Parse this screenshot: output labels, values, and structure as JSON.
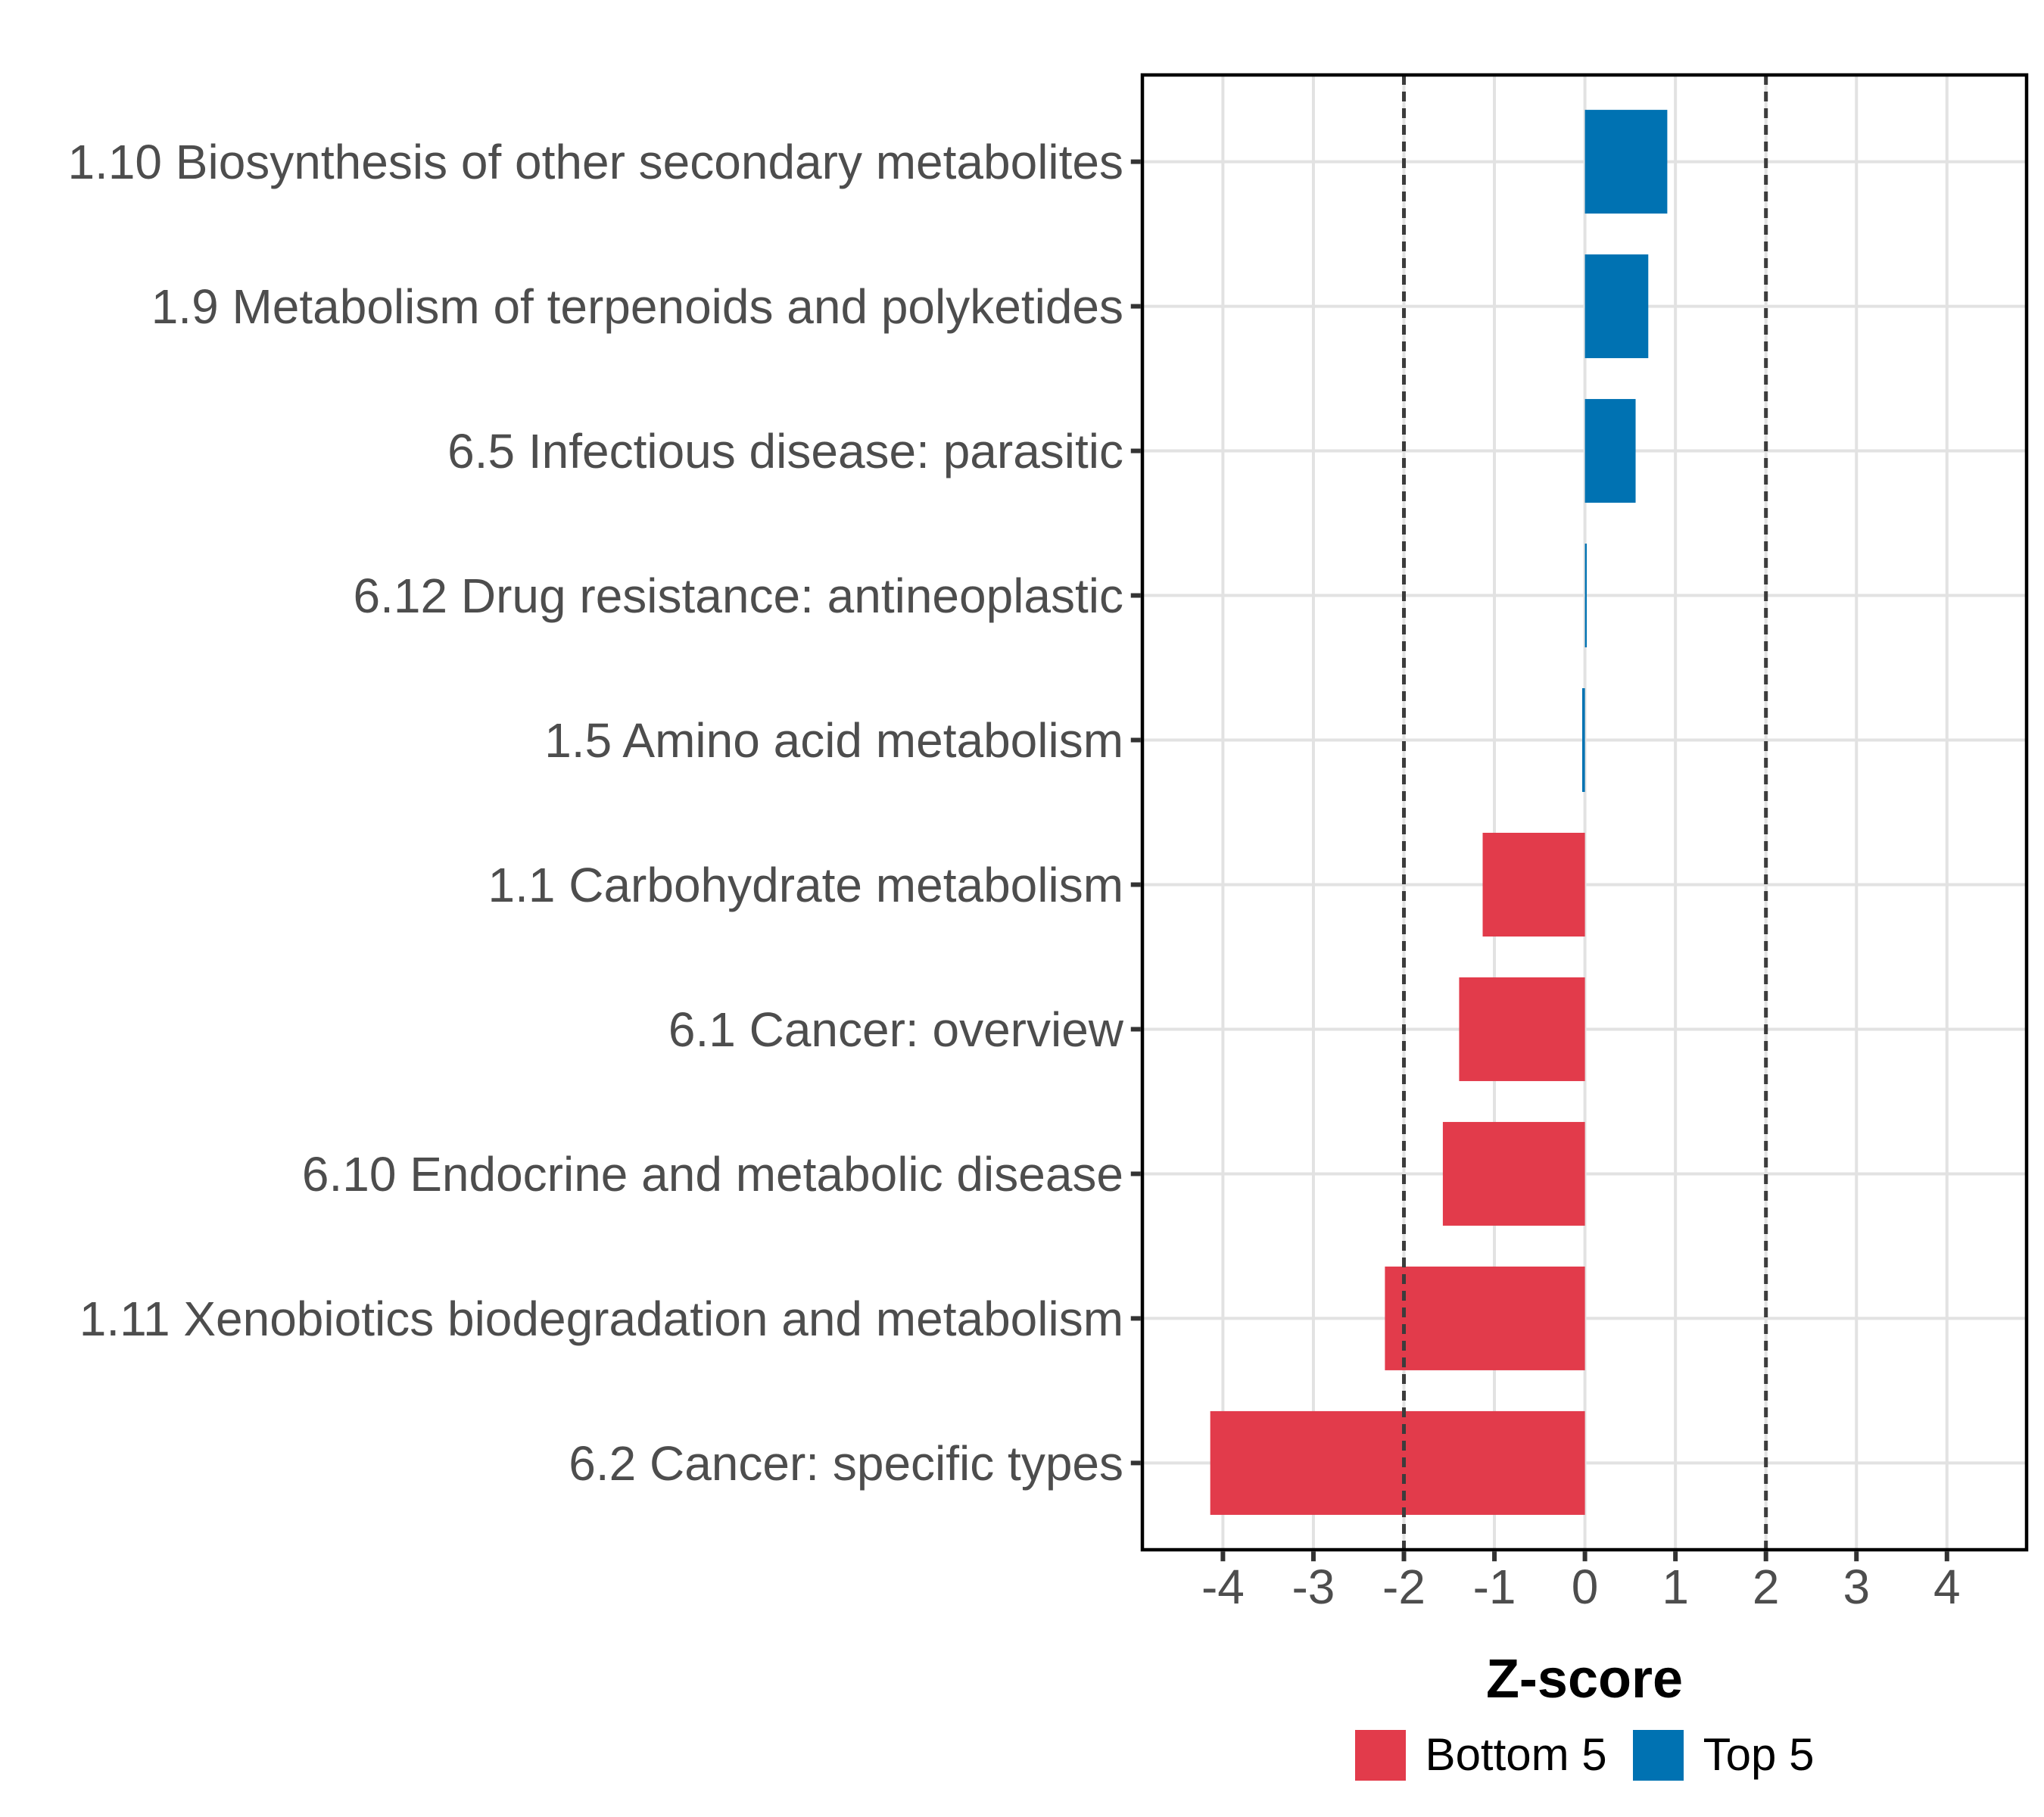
{
  "chart_data": {
    "type": "bar",
    "orientation": "horizontal",
    "title": "",
    "xlabel": "Z-score",
    "ylabel": "",
    "x_ticks": [
      -4,
      -3,
      -2,
      -1,
      0,
      1,
      2,
      3,
      4
    ],
    "xlim": [
      -4.89,
      4.88
    ],
    "reference_lines": [
      -2,
      2
    ],
    "grid": true,
    "legend_position": "bottom",
    "bars": [
      {
        "label": "1.10 Biosynthesis of other secondary metabolites",
        "value": 0.91,
        "group": "top5"
      },
      {
        "label": "1.9 Metabolism of terpenoids and polyketides",
        "value": 0.7,
        "group": "top5"
      },
      {
        "label": "6.5 Infectious disease: parasitic",
        "value": 0.56,
        "group": "top5"
      },
      {
        "label": "6.12 Drug resistance: antineoplastic",
        "value": 0.02,
        "group": "top5"
      },
      {
        "label": "1.5 Amino acid metabolism",
        "value": -0.03,
        "group": "top5"
      },
      {
        "label": "1.1 Carbohydrate metabolism",
        "value": -1.13,
        "group": "bottom5"
      },
      {
        "label": "6.1 Cancer: overview",
        "value": -1.39,
        "group": "bottom5"
      },
      {
        "label": "6.10 Endocrine and metabolic disease",
        "value": -1.57,
        "group": "bottom5"
      },
      {
        "label": "1.11 Xenobiotics biodegradation and metabolism",
        "value": -2.21,
        "group": "bottom5"
      },
      {
        "label": "6.2 Cancer: specific types",
        "value": -4.14,
        "group": "bottom5"
      }
    ],
    "legend": [
      {
        "key": "bottom5",
        "label": "Bottom 5"
      },
      {
        "key": "top5",
        "label": "Top 5"
      }
    ],
    "colors": {
      "bottom5": "#E23B4B",
      "top5": "#0072B2",
      "grid": "#E2E2E2",
      "panel_border": "#000000",
      "tick": "#333333",
      "axis_text": "#4D4D4D",
      "reference_line": "#3C3C3C",
      "axis_title": "#000000",
      "background": "#FFFFFF"
    }
  }
}
